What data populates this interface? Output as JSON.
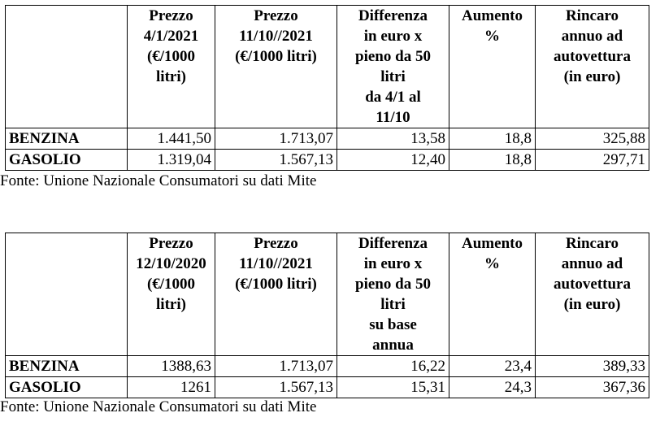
{
  "table1": {
    "headers": [
      "",
      "Prezzo\n4/1/2021\n(€/1000\nlitri)",
      "Prezzo\n11/10//2021\n(€/1000 litri)",
      "Differenza\nin euro x\npieno da 50\nlitri\nda 4/1 al\n11/10",
      "Aumento\n%",
      "Rincaro\nannuo ad\nautovettura\n(in euro)"
    ],
    "rows": [
      {
        "label": "BENZINA",
        "cells": [
          "1.441,50",
          "1.713,07",
          "13,58",
          "18,8",
          "325,88"
        ]
      },
      {
        "label": "GASOLIO",
        "cells": [
          "1.319,04",
          "1.567,13",
          "12,40",
          "18,8",
          "297,71"
        ]
      }
    ],
    "source": "Fonte: Unione Nazionale Consumatori su dati Mite"
  },
  "table2": {
    "headers": [
      "",
      "Prezzo\n12/10/2020\n(€/1000\nlitri)",
      "Prezzo\n11/10//2021\n(€/1000 litri)",
      "Differenza\nin euro x\npieno da 50\nlitri\nsu base\nannua",
      "Aumento\n%",
      "Rincaro\nannuo ad\nautovettura\n(in euro)"
    ],
    "rows": [
      {
        "label": "BENZINA",
        "cells": [
          "1388,63",
          "1.713,07",
          "16,22",
          "23,4",
          "389,33"
        ]
      },
      {
        "label": "GASOLIO",
        "cells": [
          "1261",
          "1.567,13",
          "15,31",
          "24,3",
          "367,36"
        ]
      }
    ],
    "source": "Fonte: Unione Nazionale Consumatori su dati Mite"
  }
}
